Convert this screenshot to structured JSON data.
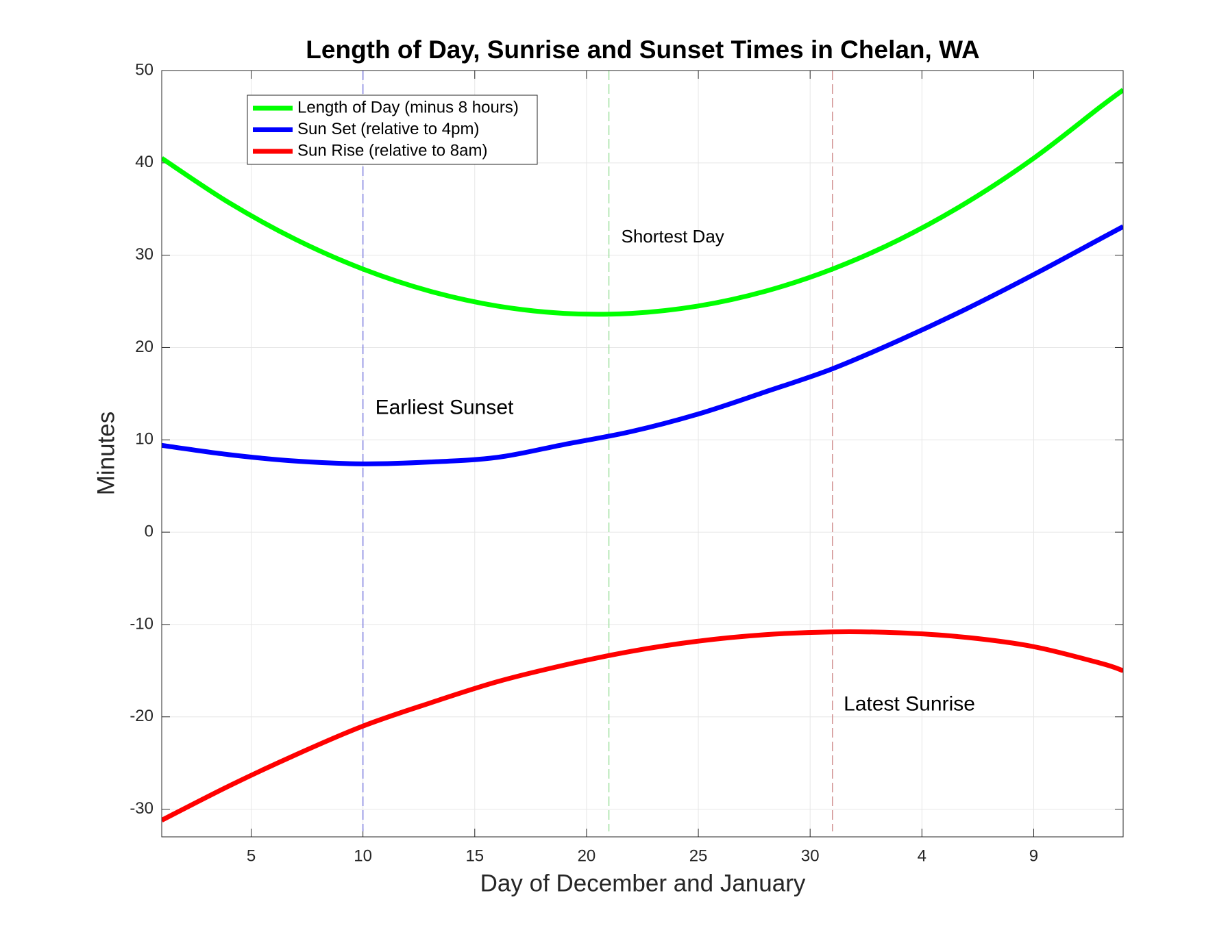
{
  "chart_data": {
    "type": "line",
    "title": "Length of Day, Sunrise and Sunset Times in Chelan, WA",
    "x_label": "Day of December and January",
    "y_label": "Minutes",
    "x": [
      1,
      4,
      7,
      10,
      13,
      16,
      19,
      22,
      25,
      28,
      31,
      34,
      37,
      40,
      43,
      44
    ],
    "series": [
      {
        "name": "Length of Day (minus 8 hours)",
        "color": "#00ff00",
        "values": [
          40.5,
          35.7,
          31.7,
          28.5,
          26.1,
          24.5,
          23.7,
          23.7,
          24.5,
          26.1,
          28.5,
          31.7,
          35.7,
          40.5,
          46.1,
          47.9
        ]
      },
      {
        "name": "Sun Set (relative to 4pm)",
        "color": "#0000ff",
        "values": [
          9.4,
          8.4,
          7.7,
          7.4,
          7.6,
          8.1,
          9.5,
          10.9,
          12.8,
          15.2,
          17.7,
          20.8,
          24.2,
          27.9,
          31.8,
          33.1
        ]
      },
      {
        "name": "Sun Rise (relative to 8am)",
        "color": "#ff0000",
        "values": [
          -31.2,
          -27.5,
          -24.1,
          -21.0,
          -18.5,
          -16.2,
          -14.4,
          -12.9,
          -11.8,
          -11.1,
          -10.8,
          -10.9,
          -11.4,
          -12.4,
          -14.2,
          -15.0
        ]
      }
    ],
    "xlim": [
      1,
      44
    ],
    "xticks": [
      5,
      10,
      15,
      20,
      25,
      30,
      {
        "value": 35,
        "label": "4"
      },
      {
        "value": 40,
        "label": "9"
      }
    ],
    "ylim": [
      -33,
      50
    ],
    "yticks": [
      -30,
      -20,
      -10,
      0,
      10,
      20,
      30,
      40,
      50
    ],
    "grid": true,
    "legend_position": "upper left",
    "reference_lines": [
      {
        "x": 10,
        "color": "#8080e0",
        "label": "Earliest Sunset"
      },
      {
        "x": 21,
        "color": "#a0e0a0",
        "label": "Shortest Day"
      },
      {
        "x": 31,
        "color": "#d09090",
        "label": "Latest Sunrise"
      }
    ]
  }
}
